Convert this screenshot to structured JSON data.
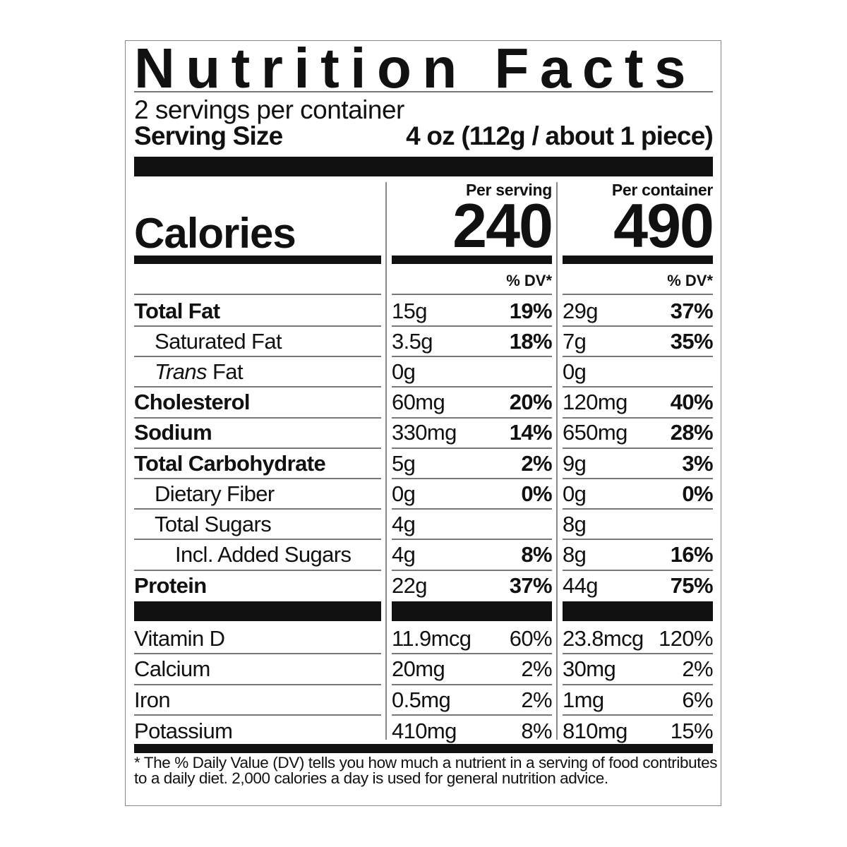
{
  "title": "Nutrition Facts",
  "servings_per_container": "2 servings per container",
  "serving_size_label": "Serving Size",
  "serving_size_value": "4 oz (112g / about 1 piece)",
  "calories": {
    "label": "Calories",
    "per_serving_header": "Per serving",
    "per_container_header": "Per container",
    "per_serving": "240",
    "per_container": "490",
    "dv_header": "% DV*"
  },
  "nutrients": [
    {
      "name": "Total Fat",
      "bold": true,
      "indent": 0,
      "serving_amount": "15g",
      "serving_dv": "19%",
      "container_amount": "29g",
      "container_dv": "37%"
    },
    {
      "name": "Saturated Fat",
      "bold": false,
      "indent": 1,
      "serving_amount": "3.5g",
      "serving_dv": "18%",
      "container_amount": "7g",
      "container_dv": "35%"
    },
    {
      "name_italic": "Trans",
      "name": " Fat",
      "bold": false,
      "indent": 1,
      "serving_amount": "0g",
      "serving_dv": "",
      "container_amount": "0g",
      "container_dv": ""
    },
    {
      "name": "Cholesterol",
      "bold": true,
      "indent": 0,
      "serving_amount": "60mg",
      "serving_dv": "20%",
      "container_amount": "120mg",
      "container_dv": "40%"
    },
    {
      "name": "Sodium",
      "bold": true,
      "indent": 0,
      "serving_amount": "330mg",
      "serving_dv": "14%",
      "container_amount": "650mg",
      "container_dv": "28%"
    },
    {
      "name": "Total Carbohydrate",
      "bold": true,
      "indent": 0,
      "serving_amount": "5g",
      "serving_dv": "2%",
      "container_amount": "9g",
      "container_dv": "3%"
    },
    {
      "name": "Dietary Fiber",
      "bold": false,
      "indent": 1,
      "serving_amount": "0g",
      "serving_dv": "0%",
      "container_amount": "0g",
      "container_dv": "0%"
    },
    {
      "name": "Total Sugars",
      "bold": false,
      "indent": 1,
      "serving_amount": "4g",
      "serving_dv": "",
      "container_amount": "8g",
      "container_dv": ""
    },
    {
      "name": "Incl. Added Sugars",
      "bold": false,
      "indent": 2,
      "serving_amount": "4g",
      "serving_dv": "8%",
      "container_amount": "8g",
      "container_dv": "16%"
    },
    {
      "name": "Protein",
      "bold": true,
      "indent": 0,
      "serving_amount": "22g",
      "serving_dv": "37%",
      "container_amount": "44g",
      "container_dv": "75%"
    }
  ],
  "vitamins": [
    {
      "name": "Vitamin D",
      "serving_amount": "11.9mcg",
      "serving_dv": "60%",
      "container_amount": "23.8mcg",
      "container_dv": "120%"
    },
    {
      "name": "Calcium",
      "serving_amount": "20mg",
      "serving_dv": "2%",
      "container_amount": "30mg",
      "container_dv": "2%"
    },
    {
      "name": "Iron",
      "serving_amount": "0.5mg",
      "serving_dv": "2%",
      "container_amount": "1mg",
      "container_dv": "6%"
    },
    {
      "name": "Potassium",
      "serving_amount": "410mg",
      "serving_dv": "8%",
      "container_amount": "810mg",
      "container_dv": "15%"
    }
  ],
  "footnote": "* The % Daily Value (DV) tells you how much a nutrient in a serving of food contributes to a daily diet. 2,000 calories a day is used for general nutrition advice."
}
